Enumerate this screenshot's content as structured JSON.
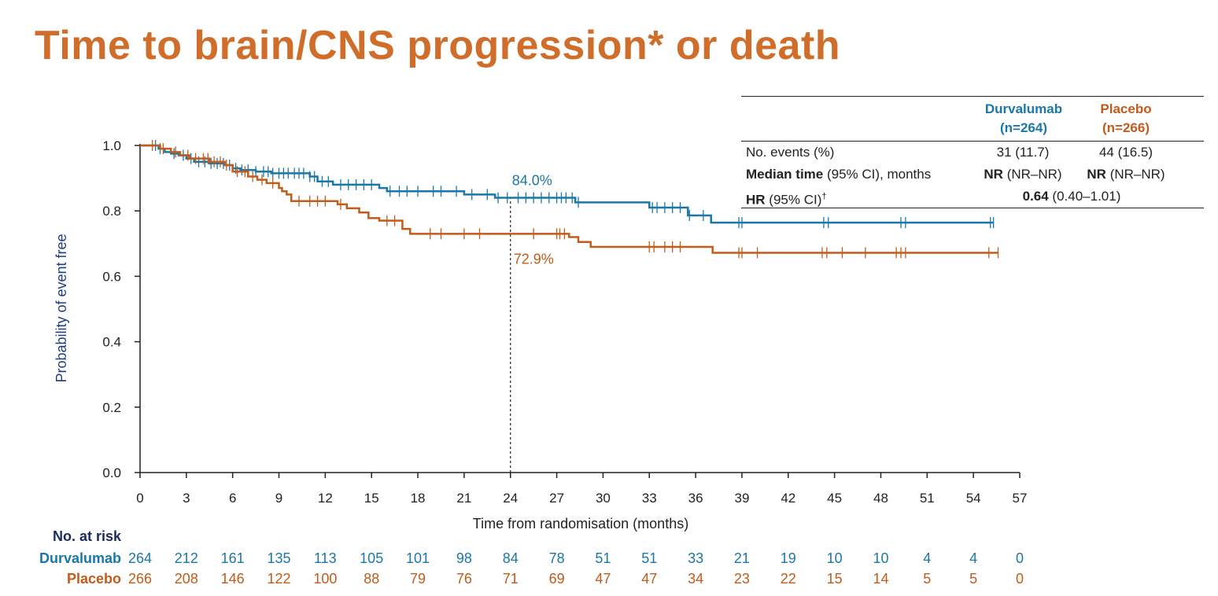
{
  "title": "Time to brain/CNS progression* or death",
  "colors": {
    "title": "#d06d2b",
    "durvalumab": "#1a78a8",
    "placebo": "#c25b1b",
    "axis": "#222222",
    "ylabel": "#1b3f80"
  },
  "summary": {
    "durvalumab_header": "Durvalumab",
    "durvalumab_n": "(n=264)",
    "placebo_header": "Placebo",
    "placebo_n": "(n=266)",
    "events_label": "No. events (%)",
    "events_durvalumab": "31 (11.7)",
    "events_placebo": "44 (16.5)",
    "median_label_bold": "Median time",
    "median_label_rest": " (95% CI), months",
    "median_durvalumab_bold": "NR",
    "median_durvalumab_rest": " (NR–NR)",
    "median_placebo_bold": "NR",
    "median_placebo_rest": " (NR–NR)",
    "hr_label_bold": "HR",
    "hr_label_rest": " (95% CI)",
    "hr_dagger": "†",
    "hr_value_bold": "0.64",
    "hr_value_rest": " (0.40–1.01)"
  },
  "risk_table": {
    "title": "No. at risk",
    "durvalumab_label": "Durvalumab",
    "placebo_label": "Placebo",
    "durvalumab": [
      "264",
      "212",
      "161",
      "135",
      "113",
      "105",
      "101",
      "98",
      "84",
      "78",
      "51",
      "51",
      "33",
      "21",
      "19",
      "10",
      "10",
      "4",
      "4",
      "0"
    ],
    "placebo": [
      "266",
      "208",
      "146",
      "122",
      "100",
      "88",
      "79",
      "76",
      "71",
      "69",
      "47",
      "47",
      "34",
      "23",
      "22",
      "15",
      "14",
      "5",
      "5",
      "0"
    ]
  },
  "chart_data": {
    "type": "line",
    "title": "Time to brain/CNS progression* or death",
    "xlabel": "Time from randomisation (months)",
    "ylabel": "Probability of event free",
    "xlim": [
      0,
      57
    ],
    "ylim": [
      0,
      1
    ],
    "x_ticks": [
      "0",
      "3",
      "6",
      "9",
      "12",
      "15",
      "18",
      "21",
      "24",
      "27",
      "30",
      "33",
      "36",
      "39",
      "42",
      "45",
      "48",
      "51",
      "54",
      "57"
    ],
    "y_ticks": [
      "0.0",
      "0.2",
      "0.4",
      "0.6",
      "0.8",
      "1.0"
    ],
    "reference_x": 24,
    "annotations": [
      {
        "series": "Durvalumab",
        "x": 24,
        "y": 0.84,
        "text": "84.0%"
      },
      {
        "series": "Placebo",
        "x": 24,
        "y": 0.729,
        "text": "72.9%"
      }
    ],
    "series": [
      {
        "name": "Durvalumab",
        "steps": [
          [
            0,
            1.0
          ],
          [
            1.2,
            0.99
          ],
          [
            1.6,
            0.98
          ],
          [
            2,
            0.975
          ],
          [
            2.5,
            0.97
          ],
          [
            3,
            0.96
          ],
          [
            3.5,
            0.95
          ],
          [
            4.5,
            0.945
          ],
          [
            5.5,
            0.94
          ],
          [
            6,
            0.93
          ],
          [
            6.5,
            0.925
          ],
          [
            7.5,
            0.92
          ],
          [
            8.5,
            0.915
          ],
          [
            11,
            0.905
          ],
          [
            11.5,
            0.89
          ],
          [
            12.5,
            0.88
          ],
          [
            15.5,
            0.87
          ],
          [
            16,
            0.86
          ],
          [
            21,
            0.85
          ],
          [
            23,
            0.84
          ],
          [
            28.2,
            0.826
          ],
          [
            33,
            0.81
          ],
          [
            35.5,
            0.786
          ],
          [
            37,
            0.764
          ],
          [
            55.3,
            0.764
          ]
        ],
        "censored": [
          1,
          1.3,
          2.2,
          2.8,
          3.3,
          3.8,
          4.2,
          4.6,
          5,
          5.4,
          5.8,
          6.2,
          6.6,
          7,
          7.5,
          8,
          8.3,
          8.6,
          9,
          9.3,
          9.6,
          10,
          10.3,
          10.6,
          11,
          11.3,
          11.8,
          12.2,
          13,
          13.5,
          14,
          14.5,
          15,
          16.2,
          16.8,
          17.3,
          18,
          19,
          19.5,
          20.5,
          21.5,
          22.5,
          23.2,
          23.8,
          24.5,
          25,
          25.5,
          26,
          26.5,
          27,
          27.3,
          27.6,
          28,
          28.4,
          33.2,
          33.5,
          34,
          34.5,
          35,
          35.6,
          36.5,
          38.8,
          39,
          44.3,
          44.6,
          49.3,
          49.6,
          55.1,
          55.3
        ]
      },
      {
        "name": "Placebo",
        "steps": [
          [
            0,
            1.0
          ],
          [
            1.3,
            0.99
          ],
          [
            2,
            0.98
          ],
          [
            2.6,
            0.97
          ],
          [
            3.2,
            0.96
          ],
          [
            4.5,
            0.95
          ],
          [
            5.5,
            0.94
          ],
          [
            6,
            0.92
          ],
          [
            7,
            0.905
          ],
          [
            7.6,
            0.895
          ],
          [
            8.2,
            0.885
          ],
          [
            9,
            0.87
          ],
          [
            9.2,
            0.86
          ],
          [
            9.5,
            0.85
          ],
          [
            9.8,
            0.83
          ],
          [
            12.8,
            0.82
          ],
          [
            13.4,
            0.808
          ],
          [
            14.2,
            0.795
          ],
          [
            14.8,
            0.778
          ],
          [
            15.5,
            0.77
          ],
          [
            17,
            0.745
          ],
          [
            17.5,
            0.73
          ],
          [
            27.8,
            0.72
          ],
          [
            28.4,
            0.705
          ],
          [
            29.2,
            0.69
          ],
          [
            37.1,
            0.672
          ],
          [
            55.6,
            0.672
          ]
        ],
        "censored": [
          0.8,
          1.5,
          2.3,
          3.1,
          3.6,
          4.1,
          4.4,
          4.8,
          5.2,
          5.6,
          6.3,
          6.8,
          7.3,
          7.9,
          8.6,
          10.3,
          11,
          11.5,
          12,
          13,
          16,
          16.5,
          18.8,
          19.5,
          21,
          22,
          25.5,
          27,
          27.2,
          27.5,
          33,
          33.3,
          34,
          34.5,
          35,
          38.8,
          39,
          40,
          44.2,
          44.5,
          45.5,
          47,
          49,
          49.3,
          49.6,
          55,
          55.6
        ]
      }
    ]
  }
}
